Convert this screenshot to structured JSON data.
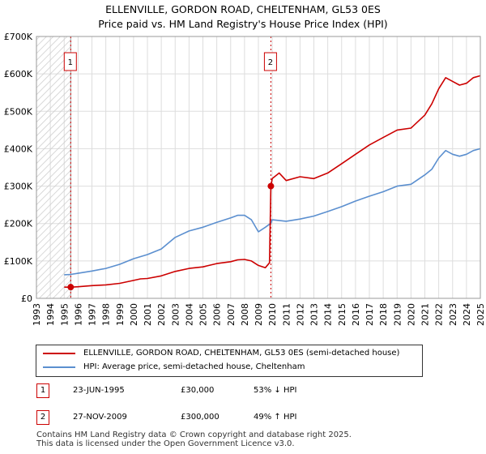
{
  "title_line1": "ELLENVILLE, GORDON ROAD, CHELTENHAM, GL53 0ES",
  "title_line2": "Price paid vs. HM Land Registry's House Price Index (HPI)",
  "colors": {
    "property": "#cc0000",
    "hpi": "#5b8fcf",
    "grid": "#dddddd",
    "marker": "#cc0000"
  },
  "chart_data": {
    "type": "line",
    "xlim": [
      1993,
      2025
    ],
    "ylim": [
      0,
      700000
    ],
    "ytick_values": [
      0,
      100000,
      200000,
      300000,
      400000,
      500000,
      600000,
      700000
    ],
    "ytick_labels": [
      "£0",
      "£100K",
      "£200K",
      "£300K",
      "£400K",
      "£500K",
      "£600K",
      "£700K"
    ],
    "xtick_values": [
      1993,
      1994,
      1995,
      1996,
      1997,
      1998,
      1999,
      2000,
      2001,
      2002,
      2003,
      2004,
      2005,
      2006,
      2007,
      2008,
      2009,
      2010,
      2011,
      2012,
      2013,
      2014,
      2015,
      2016,
      2017,
      2018,
      2019,
      2020,
      2021,
      2022,
      2023,
      2024,
      2025
    ],
    "xtick_labels": [
      "1993",
      "1994",
      "1995",
      "1996",
      "1997",
      "1998",
      "1999",
      "2000",
      "2001",
      "2002",
      "2003",
      "2004",
      "2005",
      "2006",
      "2007",
      "2008",
      "2009",
      "2010",
      "2011",
      "2012",
      "2013",
      "2014",
      "2015",
      "2016",
      "2017",
      "2018",
      "2019",
      "2020",
      "2021",
      "2022",
      "2023",
      "2024",
      "2025"
    ],
    "hatch_range": [
      1993,
      1995.47
    ],
    "series": [
      {
        "name": "ELLENVILLE, GORDON ROAD, CHELTENHAM, GL53 0ES (semi-detached house)",
        "color": "#cc0000",
        "x": [
          1995.0,
          1995.47,
          1996,
          1997,
          1998,
          1999,
          2000,
          2000.5,
          2001,
          2002,
          2003,
          2004,
          2005,
          2006,
          2007,
          2007.5,
          2008,
          2008.5,
          2009.0,
          2009.5,
          2009.8,
          2009.9,
          2010,
          2010.5,
          2011,
          2012,
          2013,
          2014,
          2015,
          2016,
          2017,
          2018,
          2019,
          2020,
          2021,
          2021.5,
          2022,
          2022.5,
          2023,
          2023.5,
          2024,
          2024.5,
          2025
        ],
        "y": [
          30000,
          30000,
          31000,
          34000,
          36000,
          40000,
          48000,
          52000,
          53000,
          60000,
          72000,
          80000,
          84000,
          93000,
          98000,
          103000,
          104000,
          100000,
          88000,
          82000,
          95000,
          300000,
          320000,
          335000,
          315000,
          325000,
          320000,
          335000,
          360000,
          385000,
          410000,
          430000,
          450000,
          455000,
          490000,
          520000,
          560000,
          590000,
          580000,
          570000,
          575000,
          590000,
          595000
        ]
      },
      {
        "name": "HPI: Average price, semi-detached house, Cheltenham",
        "color": "#5b8fcf",
        "x": [
          1995.0,
          1995.47,
          1996,
          1997,
          1998,
          1999,
          2000,
          2001,
          2002,
          2003,
          2004,
          2005,
          2006,
          2007,
          2007.5,
          2008,
          2008.5,
          2009.0,
          2009.5,
          2009.9,
          2010,
          2011,
          2012,
          2013,
          2014,
          2015,
          2016,
          2017,
          2018,
          2019,
          2020,
          2021,
          2021.5,
          2022,
          2022.5,
          2023,
          2023.5,
          2024,
          2024.5,
          2025
        ],
        "y": [
          63000,
          64000,
          67000,
          73000,
          80000,
          91000,
          106000,
          117000,
          132000,
          163000,
          180000,
          190000,
          203000,
          215000,
          222000,
          222000,
          210000,
          178000,
          190000,
          201000,
          210000,
          206000,
          212000,
          220000,
          232000,
          245000,
          260000,
          273000,
          285000,
          300000,
          305000,
          330000,
          345000,
          375000,
          395000,
          385000,
          380000,
          385000,
          395000,
          400000
        ]
      }
    ],
    "transactions": [
      {
        "label": "1",
        "x": 1995.47,
        "y": 30000
      },
      {
        "label": "2",
        "x": 2009.9,
        "y": 300000
      }
    ]
  },
  "legend": {
    "property_label": "ELLENVILLE, GORDON ROAD, CHELTENHAM, GL53 0ES (semi-detached house)",
    "hpi_label": "HPI: Average price, semi-detached house, Cheltenham"
  },
  "transactions_table": [
    {
      "label": "1",
      "date": "23-JUN-1995",
      "price": "£30,000",
      "hpi": "53% ↓ HPI"
    },
    {
      "label": "2",
      "date": "27-NOV-2009",
      "price": "£300,000",
      "hpi": "49% ↑ HPI"
    }
  ],
  "footer": {
    "line1": "Contains HM Land Registry data © Crown copyright and database right 2025.",
    "line2": "This data is licensed under the Open Government Licence v3.0."
  }
}
